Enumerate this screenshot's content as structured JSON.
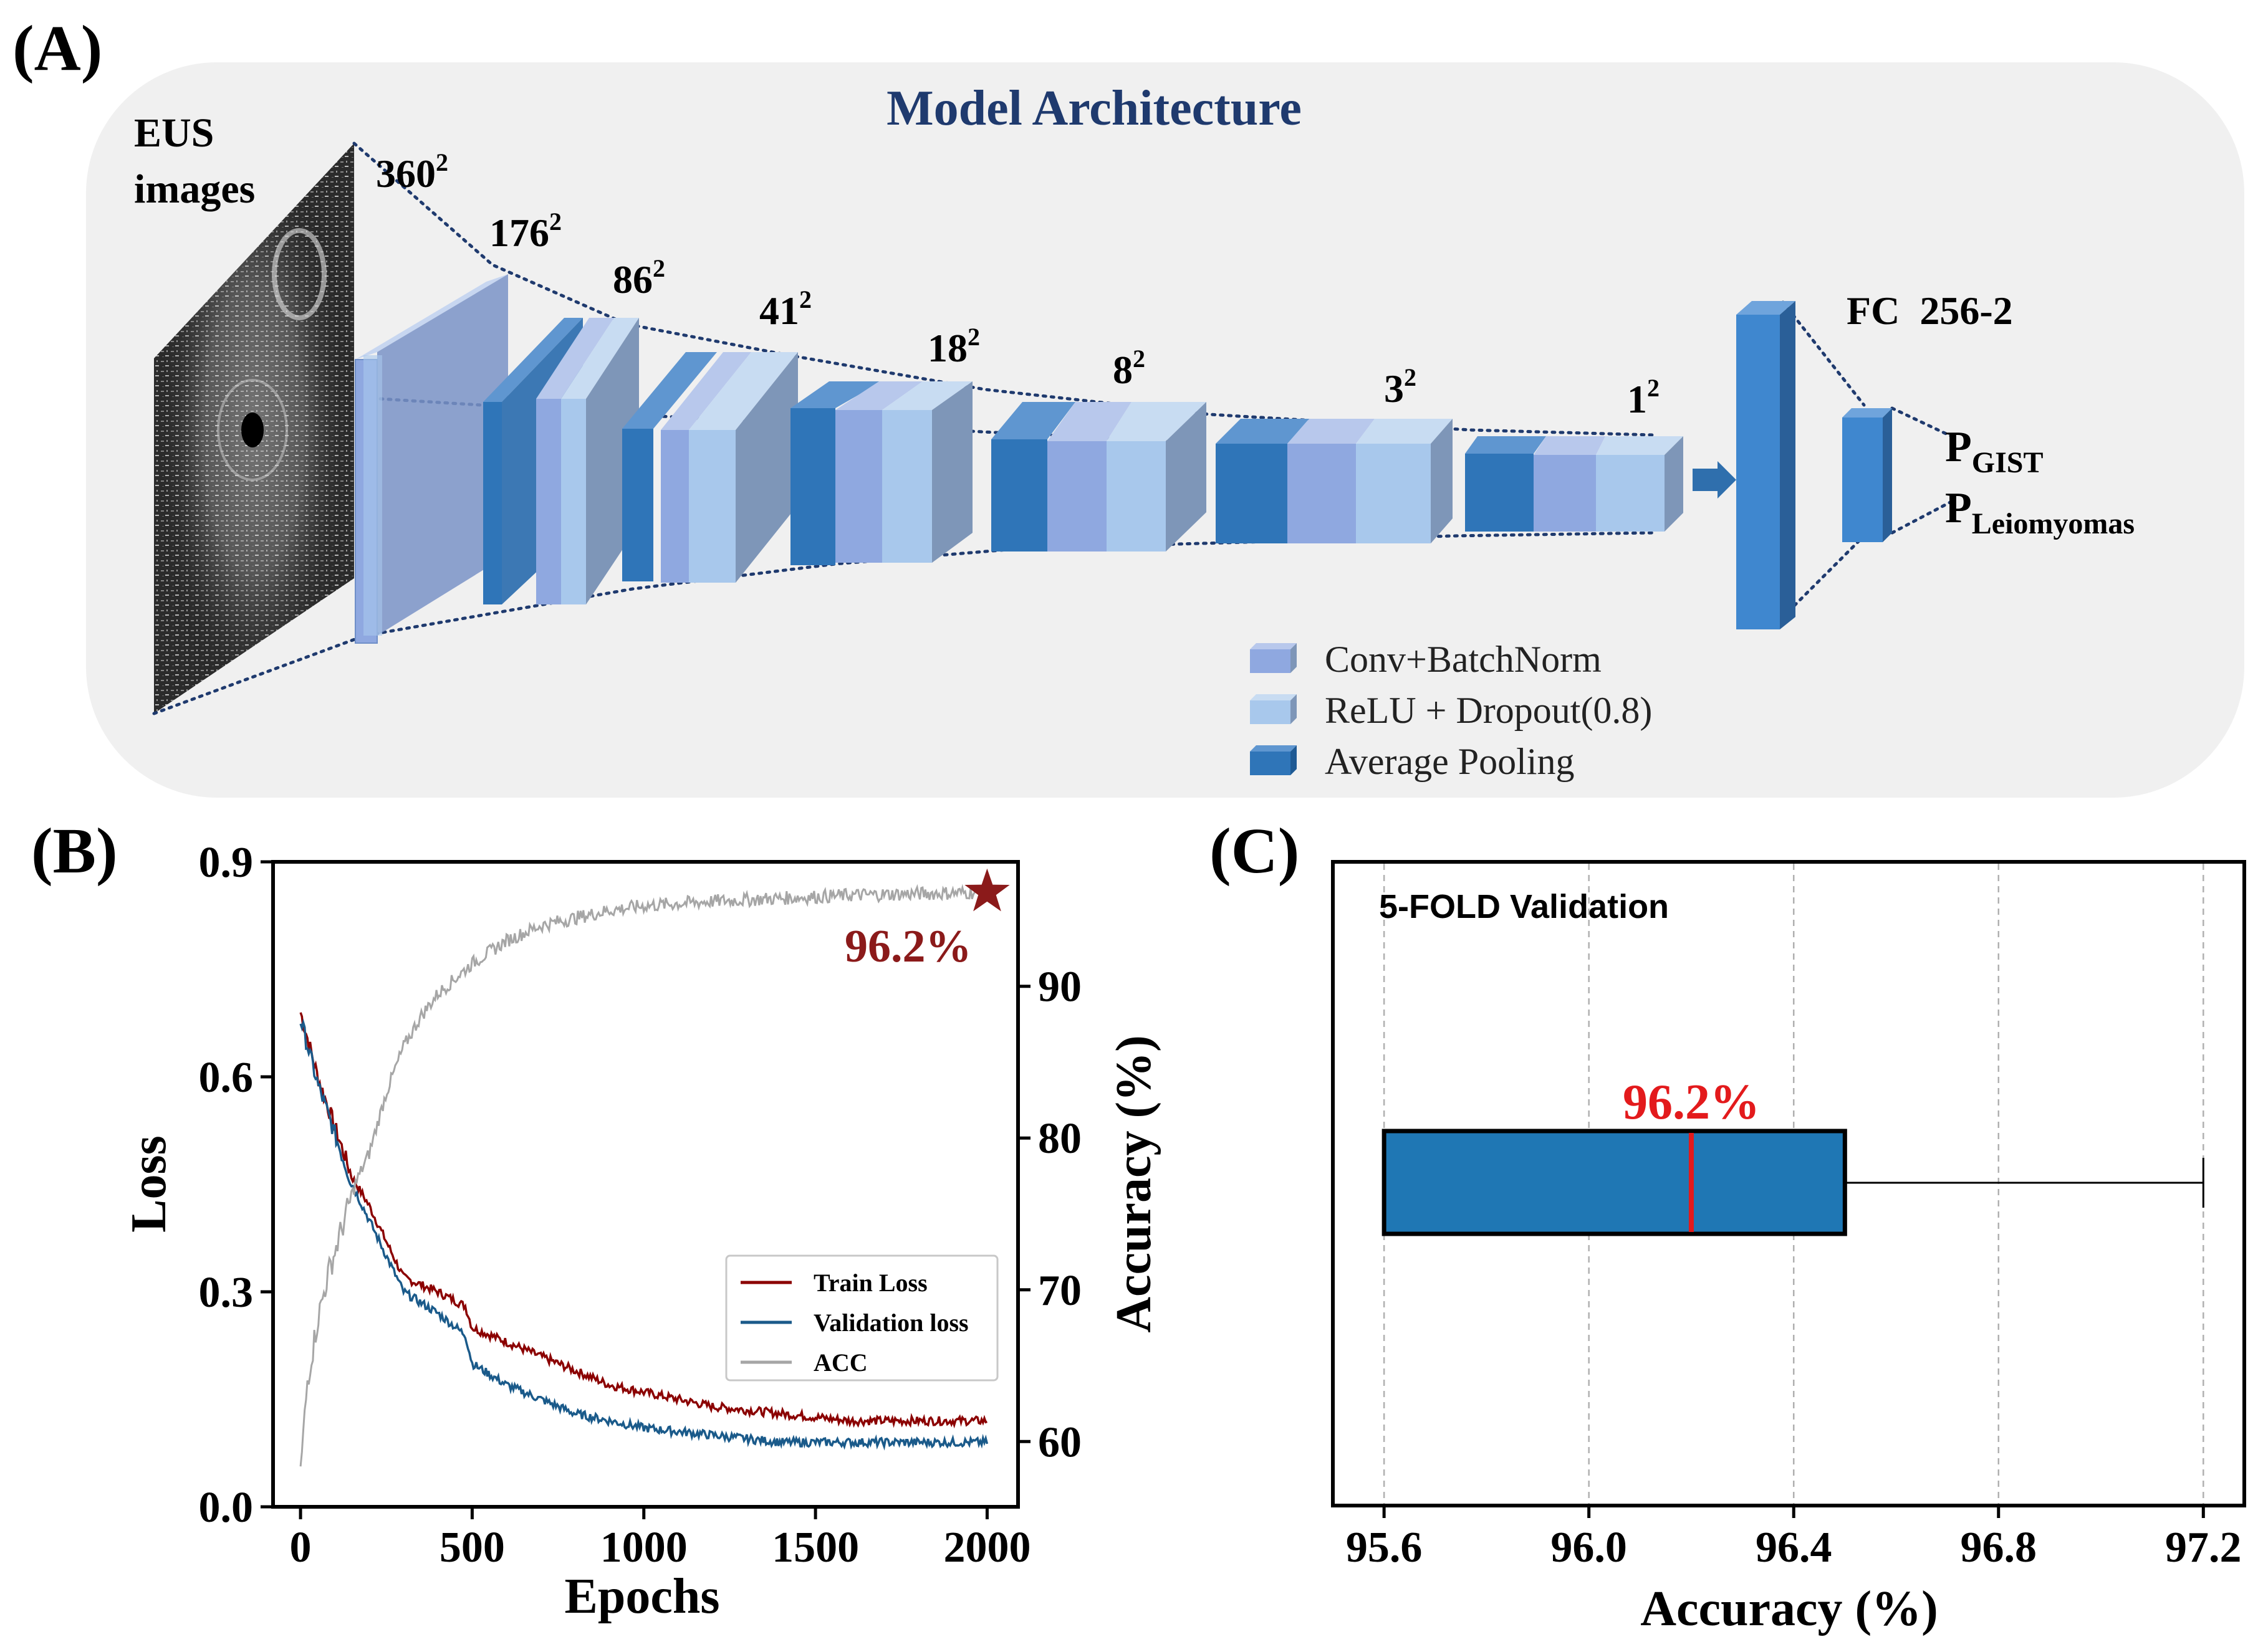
{
  "panel_a": {
    "label": "(A)",
    "title": "Model Architecture",
    "input_label_1": "EUS",
    "input_label_2": "images",
    "sizes": [
      {
        "base": "360",
        "exp": "2"
      },
      {
        "base": "176",
        "exp": "2"
      },
      {
        "base": "86",
        "exp": "2"
      },
      {
        "base": "41",
        "exp": "2"
      },
      {
        "base": "18",
        "exp": "2"
      },
      {
        "base": "8",
        "exp": "2"
      },
      {
        "base": "3",
        "exp": "2"
      },
      {
        "base": "1",
        "exp": "2"
      }
    ],
    "fc_label": "FC  256-2",
    "output_1": {
      "p": "P",
      "sub": "GIST"
    },
    "output_2": {
      "p": "P",
      "sub": "Leiomyomas"
    },
    "legend": [
      "Conv+BatchNorm",
      "ReLU + Dropout(0.8)",
      "Average Pooling"
    ],
    "colors": {
      "conv": "#8fa8e0",
      "relu": "#a8c8ec",
      "pool": "#2f75b8",
      "fc": "#3f87cf",
      "title": "#1f3a6e",
      "panel_bg": "#f0f0f0"
    }
  },
  "panel_b": {
    "label": "(B)",
    "annotation": "96.2%",
    "chart_data": {
      "type": "line",
      "xlabel": "Epochs",
      "ylabel": "Loss",
      "y2label": "Accuracy (%)",
      "xlim": [
        -80,
        2090
      ],
      "ylim": [
        0,
        0.9
      ],
      "y2lim": [
        55.7,
        98.2
      ],
      "xticks": [
        "0",
        "500",
        "1000",
        "1500",
        "2000"
      ],
      "yticks": [
        "0.0",
        "0.3",
        "0.6",
        "0.9"
      ],
      "y2ticks": [
        "60",
        "70",
        "80",
        "90"
      ],
      "legend": [
        "Train Loss",
        "Validation loss",
        "ACC"
      ],
      "legend_position": "lower-right",
      "series": [
        {
          "name": "Train Loss",
          "axis": "left",
          "color": "#8b0000",
          "x": [
            0,
            50,
            100,
            150,
            200,
            250,
            300,
            400,
            480,
            500,
            600,
            700,
            800,
            900,
            1000,
            1200,
            1400,
            1600,
            1800,
            2000
          ],
          "y": [
            0.69,
            0.6,
            0.53,
            0.46,
            0.42,
            0.37,
            0.32,
            0.3,
            0.28,
            0.25,
            0.23,
            0.21,
            0.19,
            0.17,
            0.16,
            0.14,
            0.13,
            0.12,
            0.12,
            0.12
          ]
        },
        {
          "name": "Validation loss",
          "axis": "left",
          "color": "#1a5a8a",
          "x": [
            0,
            50,
            100,
            150,
            200,
            250,
            300,
            400,
            480,
            500,
            600,
            700,
            800,
            900,
            1000,
            1200,
            1400,
            1600,
            1800,
            2000
          ],
          "y": [
            0.68,
            0.59,
            0.52,
            0.45,
            0.4,
            0.35,
            0.3,
            0.27,
            0.24,
            0.2,
            0.17,
            0.15,
            0.13,
            0.12,
            0.11,
            0.1,
            0.09,
            0.09,
            0.09,
            0.09
          ]
        },
        {
          "name": "ACC",
          "axis": "right",
          "color": "#a6a6a6",
          "x": [
            0,
            20,
            50,
            80,
            120,
            160,
            200,
            250,
            300,
            350,
            400,
            450,
            500,
            600,
            700,
            800,
            900,
            1000,
            1200,
            1400,
            1600,
            1800,
            2000
          ],
          "y": [
            58,
            64,
            68,
            71,
            74,
            77,
            79,
            83,
            86,
            88,
            89.5,
            90.5,
            91.5,
            93,
            94,
            94.5,
            95,
            95.3,
            95.6,
            95.8,
            96,
            96.1,
            96.2
          ]
        }
      ],
      "marker": {
        "x": 2000,
        "y": 96.2,
        "axis": "right",
        "shape": "star",
        "color": "#8b1a1a"
      }
    }
  },
  "panel_c": {
    "label": "(C)",
    "chart_data": {
      "type": "box",
      "title": "5-FOLD Validation",
      "xlabel": "Accuracy (%)",
      "xlim": [
        95.5,
        97.28
      ],
      "xticks": [
        "95.6",
        "96.0",
        "96.4",
        "96.8",
        "97.2"
      ],
      "grid": "vertical dashed",
      "box": {
        "whisker_low": 95.6,
        "q1": 95.6,
        "median": 96.2,
        "q3": 96.5,
        "whisker_high": 97.2
      },
      "median_label": "96.2%",
      "box_color": "#1f77b4",
      "median_color": "#e31a1c"
    }
  }
}
